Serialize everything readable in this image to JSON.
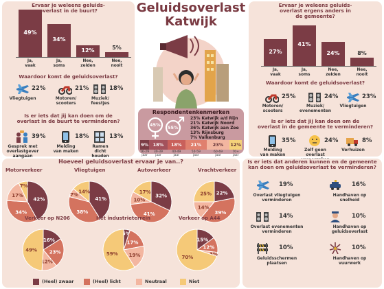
{
  "title": {
    "line1": "Geluidsoverlast",
    "line2": "Katwijk"
  },
  "buurt": {
    "question": "Ervaar je weleens geluids-\noverlast in de buurt?",
    "bars": [
      {
        "label": "Ja,\nvaak",
        "value": 49
      },
      {
        "label": "Ja,\nsoms",
        "value": 34
      },
      {
        "label": "Nee,\nzelden",
        "value": 12
      },
      {
        "label": "Nee,\nnooit",
        "value": 5
      }
    ],
    "sources_question": "Waardoor komt de geluidsoverlast?",
    "sources": [
      {
        "icon": "airplane-icon",
        "pct": "22%",
        "label": "Vliegtuigen"
      },
      {
        "icon": "motorcycle-icon",
        "pct": "21%",
        "label": "Motoren/\nscooters"
      },
      {
        "icon": "music-icon",
        "pct": "18%",
        "label": "Muziek/\nfeestjes"
      }
    ],
    "action_question": "Is er iets dat jij kan doen om de\noverlast in de buurt te verminderen?",
    "actions": [
      {
        "icon": "conversation-icon",
        "pct": "39%",
        "label": "Gesprek met\noverlastgever\naangaan"
      },
      {
        "icon": "phone-icon",
        "pct": "18%",
        "label": "Melding\nvan maken"
      },
      {
        "icon": "window-icon",
        "pct": "13%",
        "label": "Ramen\ndicht\nhouden"
      }
    ]
  },
  "gemeente": {
    "question": "Ervaar je weleens geluids-\noverlast ergens anders in\nde gemeente?",
    "bars": [
      {
        "label": "Ja,\nvaak",
        "value": 27
      },
      {
        "label": "Ja,\nsoms",
        "value": 41
      },
      {
        "label": "Nee,\nzelden",
        "value": 24
      },
      {
        "label": "Nee,\nnooit",
        "value": 8
      }
    ],
    "sources_question": "Waardoor komt de geluidsoverlast?",
    "sources": [
      {
        "icon": "motorcycle-icon",
        "pct": "25%",
        "label": "Motoren/\nscooters"
      },
      {
        "icon": "music-icon",
        "pct": "24%",
        "label": "Muziek/\nevenementen"
      },
      {
        "icon": "airplane-icon",
        "pct": "23%",
        "label": "Vliegtuigen"
      }
    ],
    "action_question": "Is er iets dat jij kan doen om de\noverlast in de gemeente te verminderen?",
    "actions": [
      {
        "icon": "phone-icon",
        "pct": "35%",
        "label": "Melding\nvan maken"
      },
      {
        "icon": "shrug-icon",
        "pct": "24%",
        "label": "Zelf geen\noverlast\nveroorzaken"
      },
      {
        "icon": "truck-icon",
        "pct": "8%",
        "label": "Verhuizen"
      }
    ]
  },
  "respondents": {
    "title": "Respondentenkenmerken",
    "female_pct": "45%",
    "male_pct": "55%",
    "areas": [
      "23% Katwijk a/d Rijn",
      "21% Katwijk Noord",
      "36% Katwijk aan Zee",
      "13% Rijnsburg",
      "7% Valkenburg"
    ],
    "ages": [
      {
        "pct": "9%",
        "label": "16-29\njaar",
        "value": 9,
        "color": "#7b3c45"
      },
      {
        "pct": "18%",
        "label": "30-39\njaar",
        "value": 18,
        "color": "#a3525c"
      },
      {
        "pct": "18%",
        "label": "40-49\njaar",
        "value": 18,
        "color": "#c9605b"
      },
      {
        "pct": "21%",
        "label": "50-59\njaar",
        "value": 21,
        "color": "#e0806e"
      },
      {
        "pct": "23%",
        "label": "60-69\njaar",
        "value": 23,
        "color": "#f3b6a0"
      },
      {
        "pct": "12%",
        "label": "70+\njaar",
        "value": 12,
        "color": "#f5d27a"
      }
    ]
  },
  "pies_question": "Hoeveel geluidsoverlast ervaar je van..?",
  "legend": [
    {
      "label": "(Heel) zwaar",
      "color": "#7b3c45"
    },
    {
      "label": "(Heel) licht",
      "color": "#d4735f"
    },
    {
      "label": "Neutraal",
      "color": "#f3b6a0"
    },
    {
      "label": "Niet",
      "color": "#f5c978"
    }
  ],
  "chart_data": [
    {
      "type": "pie",
      "title": "Motorverkeer",
      "categories": [
        "(Heel) zwaar",
        "(Heel) licht",
        "Neutraal",
        "Niet"
      ],
      "values": [
        42,
        34,
        17,
        7
      ]
    },
    {
      "type": "pie",
      "title": "Vliegtuigen",
      "categories": [
        "(Heel) zwaar",
        "(Heel) licht",
        "Neutraal",
        "Niet"
      ],
      "values": [
        41,
        38,
        7,
        14
      ]
    },
    {
      "type": "pie",
      "title": "Autoverkeer",
      "categories": [
        "(Heel) zwaar",
        "(Heel) licht",
        "Neutraal",
        "Niet"
      ],
      "values": [
        32,
        41,
        10,
        17
      ]
    },
    {
      "type": "pie",
      "title": "Vrachtverkeer",
      "categories": [
        "(Heel) zwaar",
        "(Heel) licht",
        "Neutraal",
        "Niet"
      ],
      "values": [
        22,
        39,
        14,
        25
      ]
    },
    {
      "type": "pie",
      "title": "Verkeer op N206",
      "categories": [
        "(Heel) zwaar",
        "(Heel) licht",
        "Neutraal",
        "Niet"
      ],
      "values": [
        16,
        23,
        12,
        49
      ]
    },
    {
      "type": "pie",
      "title": "Het industrieterrein",
      "categories": [
        "(Heel) zwaar",
        "(Heel) licht",
        "Neutraal",
        "Niet"
      ],
      "values": [
        5,
        17,
        19,
        59
      ]
    },
    {
      "type": "pie",
      "title": "Verkeer op A44",
      "categories": [
        "(Heel) zwaar",
        "(Heel) licht",
        "Neutraal",
        "Niet"
      ],
      "values": [
        15,
        12,
        3,
        70
      ]
    }
  ],
  "others_question": "Is er iets dat anderen kunnen en de gemeente\nkan doen om geluidsoverlast te verminderen?",
  "others": [
    {
      "icon": "airplane-icon",
      "pct": "19%",
      "label": "Overlast vliegtuigen\nverminderen"
    },
    {
      "icon": "police-car-icon",
      "pct": "16%",
      "label": "Handhaven op\nsnelheid"
    },
    {
      "icon": "music-icon",
      "pct": "14%",
      "label": "Overlast evenementen\nverminderen"
    },
    {
      "icon": "officer-icon",
      "pct": "10%",
      "label": "Handhaven op\ngeluidsoverlast"
    },
    {
      "icon": "barrier-icon",
      "pct": "10%",
      "label": "Geluidsschermen\nplaatsen"
    },
    {
      "icon": "fireworks-icon",
      "pct": "10%",
      "label": "Handhaven op\nvuurwerk"
    }
  ]
}
